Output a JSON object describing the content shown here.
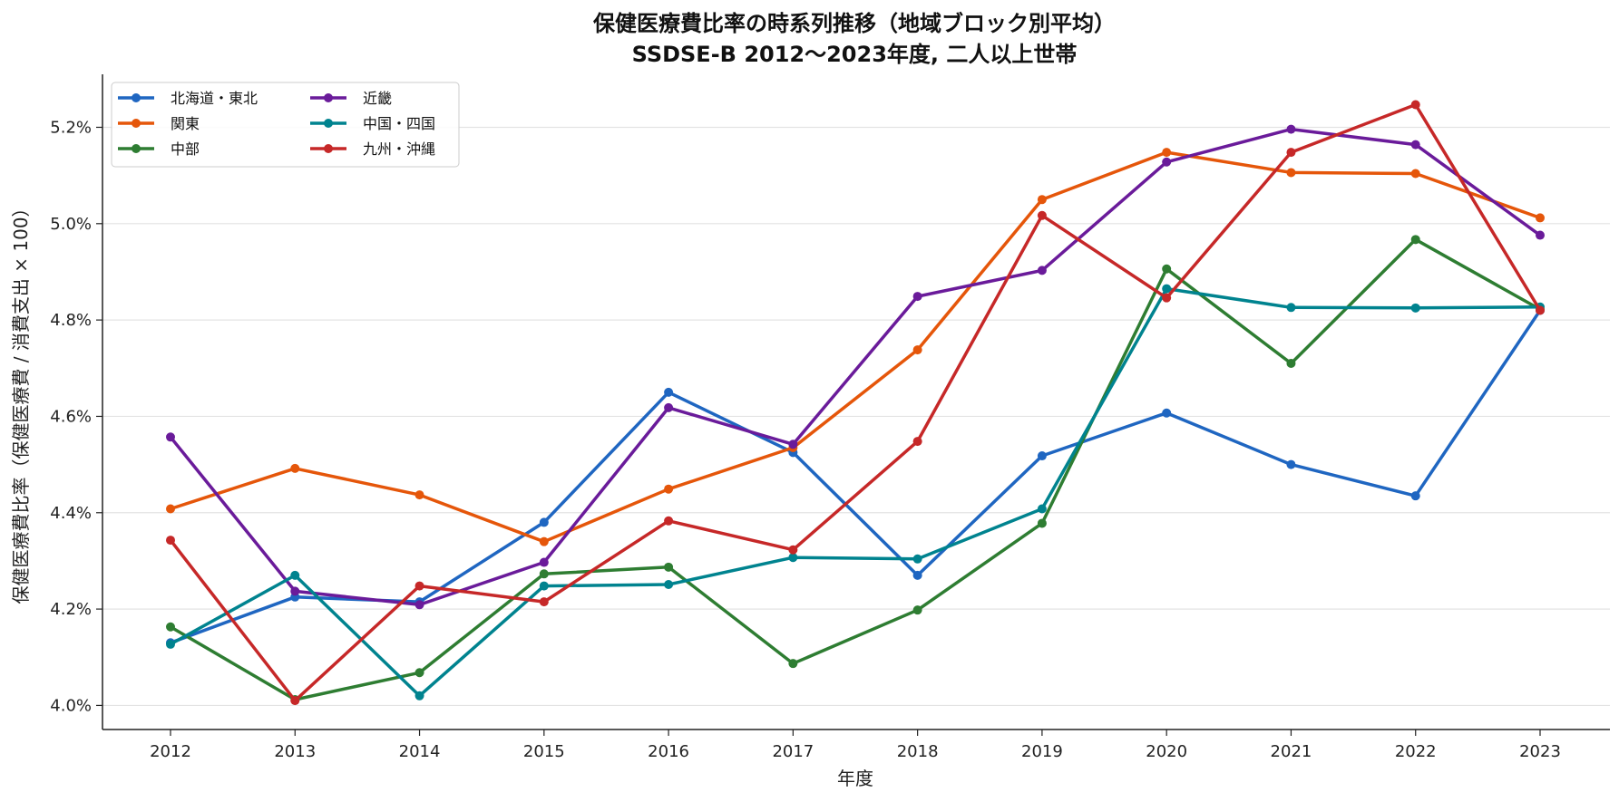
{
  "chart_data": {
    "type": "line",
    "title": "保健医療費比率の時系列推移（地域ブロック別平均）",
    "subtitle": "SSDSE-B 2012〜2023年度, 二人以上世帯",
    "xlabel": "年度",
    "ylabel": "保健医療費比率（保健医療費 / 消費支出 × 100）",
    "x": [
      "2012",
      "2013",
      "2014",
      "2015",
      "2016",
      "2017",
      "2018",
      "2019",
      "2020",
      "2021",
      "2022",
      "2023"
    ],
    "ylim": [
      3.95,
      5.31
    ],
    "yticks": [
      4.0,
      4.2,
      4.4,
      4.6,
      4.8,
      5.0,
      5.2
    ],
    "ytick_labels": [
      "4.0%",
      "4.2%",
      "4.4%",
      "4.6%",
      "4.8%",
      "5.0%",
      "5.2%"
    ],
    "grid": "horizontal",
    "legend_position": "top-left",
    "series": [
      {
        "name": "北海道・東北",
        "color": "#1f66c1",
        "values": [
          4.13,
          4.225,
          4.215,
          4.38,
          4.65,
          4.525,
          4.27,
          4.518,
          4.607,
          4.5,
          4.435,
          4.82
        ]
      },
      {
        "name": "関東",
        "color": "#e5560a",
        "values": [
          4.408,
          4.492,
          4.437,
          4.34,
          4.449,
          4.535,
          4.738,
          5.05,
          5.148,
          5.106,
          5.104,
          5.012
        ]
      },
      {
        "name": "中部",
        "color": "#2e7d32",
        "values": [
          4.163,
          4.012,
          4.068,
          4.273,
          4.287,
          4.087,
          4.198,
          4.378,
          4.906,
          4.71,
          4.967,
          4.822
        ]
      },
      {
        "name": "近畿",
        "color": "#6a1b9a",
        "values": [
          4.557,
          4.237,
          4.209,
          4.297,
          4.618,
          4.542,
          4.849,
          4.903,
          5.128,
          5.196,
          5.164,
          4.976
        ]
      },
      {
        "name": "中国・四国",
        "color": "#00838f",
        "values": [
          4.127,
          4.27,
          4.02,
          4.248,
          4.251,
          4.307,
          4.304,
          4.408,
          4.865,
          4.826,
          4.825,
          4.827
        ]
      },
      {
        "name": "九州・沖縄",
        "color": "#c62828",
        "values": [
          4.343,
          4.01,
          4.248,
          4.215,
          4.383,
          4.323,
          4.548,
          5.017,
          4.846,
          5.148,
          5.247,
          4.82
        ]
      }
    ]
  }
}
